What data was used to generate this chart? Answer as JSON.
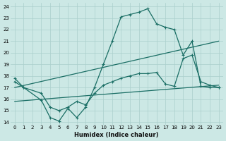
{
  "xlabel": "Humidex (Indice chaleur)",
  "bg_color": "#cce8e5",
  "grid_color": "#aacfcc",
  "line_color": "#1a6e65",
  "xlim": [
    -0.5,
    23.5
  ],
  "ylim": [
    13.8,
    24.3
  ],
  "xticks": [
    0,
    1,
    2,
    3,
    4,
    5,
    6,
    7,
    8,
    9,
    10,
    11,
    12,
    13,
    14,
    15,
    16,
    17,
    18,
    19,
    20,
    21,
    22,
    23
  ],
  "yticks": [
    14,
    15,
    16,
    17,
    18,
    19,
    20,
    21,
    22,
    23,
    24
  ],
  "c1x": [
    0,
    1,
    3,
    4,
    5,
    6,
    7,
    8,
    9,
    10,
    11,
    12,
    13,
    14,
    15,
    16,
    17,
    18,
    19,
    20,
    21,
    22,
    23
  ],
  "c1y": [
    17.8,
    17.0,
    15.9,
    14.4,
    14.1,
    15.2,
    14.4,
    15.3,
    17.0,
    19.0,
    21.0,
    23.1,
    23.3,
    23.5,
    23.8,
    22.5,
    22.2,
    22.0,
    19.8,
    21.0,
    17.1,
    17.0,
    17.0
  ],
  "c2x": [
    0,
    1,
    3,
    4,
    5,
    6,
    7,
    8,
    9,
    10,
    11,
    12,
    13,
    14,
    15,
    16,
    17,
    18,
    19,
    20,
    21,
    22,
    23
  ],
  "c2y": [
    17.5,
    17.0,
    16.5,
    15.3,
    15.0,
    15.3,
    15.8,
    15.5,
    16.5,
    17.2,
    17.5,
    17.8,
    18.0,
    18.2,
    18.2,
    18.3,
    17.3,
    17.1,
    19.5,
    19.8,
    17.5,
    17.2,
    17.0
  ],
  "c3x": [
    0,
    23
  ],
  "c3y": [
    17.0,
    21.0
  ],
  "c4x": [
    0,
    23
  ],
  "c4y": [
    15.8,
    17.2
  ]
}
